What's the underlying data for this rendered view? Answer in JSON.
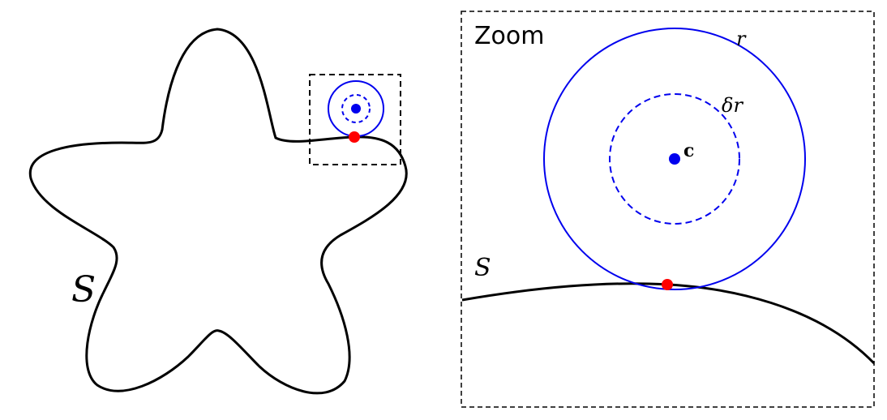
{
  "labels": {
    "zoom": "Zoom",
    "shape_left": "S",
    "shape_right": "S",
    "radius": "r",
    "inner_radius": "δr",
    "center": "c"
  },
  "colors": {
    "outline": "#000000",
    "circle": "#0000ee",
    "contact_point": "#ff0000",
    "center_point": "#0000ee"
  }
}
